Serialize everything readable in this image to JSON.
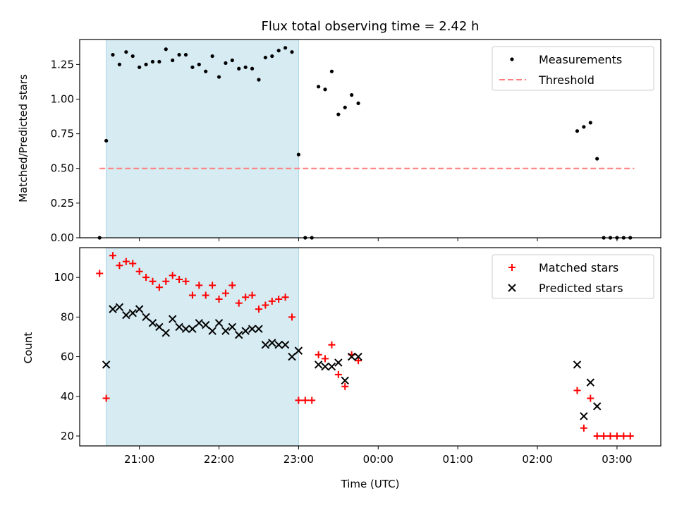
{
  "chart_data": [
    {
      "type": "scatter",
      "title": "Flux total observing time = 2.42 h",
      "ylabel": "Matched/Predicted stars",
      "xlabel": "",
      "x_axis": "time_utc",
      "xlim": [
        "20:15",
        "03:33"
      ],
      "ylim": [
        0,
        1.43
      ],
      "yticks": [
        "0.00",
        "0.25",
        "0.50",
        "0.75",
        "1.00",
        "1.25"
      ],
      "shaded_region": {
        "from": "20:35",
        "to": "23:00",
        "color": "#add8e6"
      },
      "legend_position": "top-right",
      "series": [
        {
          "name": "Measurements",
          "color": "#000000",
          "marker": "dot",
          "points": [
            [
              "20:30",
              0
            ],
            [
              "20:35",
              0.7
            ],
            [
              "20:40",
              1.32
            ],
            [
              "20:45",
              1.25
            ],
            [
              "20:50",
              1.34
            ],
            [
              "20:55",
              1.31
            ],
            [
              "21:00",
              1.23
            ],
            [
              "21:05",
              1.25
            ],
            [
              "21:10",
              1.27
            ],
            [
              "21:15",
              1.27
            ],
            [
              "21:20",
              1.36
            ],
            [
              "21:25",
              1.28
            ],
            [
              "21:30",
              1.32
            ],
            [
              "21:35",
              1.32
            ],
            [
              "21:40",
              1.23
            ],
            [
              "21:45",
              1.25
            ],
            [
              "21:50",
              1.2
            ],
            [
              "21:55",
              1.31
            ],
            [
              "22:00",
              1.16
            ],
            [
              "22:05",
              1.26
            ],
            [
              "22:10",
              1.28
            ],
            [
              "22:15",
              1.22
            ],
            [
              "22:20",
              1.23
            ],
            [
              "22:25",
              1.22
            ],
            [
              "22:30",
              1.14
            ],
            [
              "22:35",
              1.3
            ],
            [
              "22:40",
              1.31
            ],
            [
              "22:45",
              1.35
            ],
            [
              "22:50",
              1.37
            ],
            [
              "22:55",
              1.34
            ],
            [
              "23:00",
              0.6
            ],
            [
              "23:05",
              0
            ],
            [
              "23:10",
              0
            ],
            [
              "23:15",
              1.09
            ],
            [
              "23:20",
              1.07
            ],
            [
              "23:25",
              1.2
            ],
            [
              "23:30",
              0.89
            ],
            [
              "23:35",
              0.94
            ],
            [
              "23:40",
              1.03
            ],
            [
              "23:45",
              0.97
            ],
            [
              "02:30",
              0.77
            ],
            [
              "02:35",
              0.8
            ],
            [
              "02:40",
              0.83
            ],
            [
              "02:45",
              0.57
            ],
            [
              "02:50",
              0
            ],
            [
              "02:55",
              0
            ],
            [
              "03:00",
              0
            ],
            [
              "03:05",
              0
            ],
            [
              "03:10",
              0
            ]
          ]
        },
        {
          "name": "Threshold",
          "color": "#ff7f7f",
          "marker": "dashed-line",
          "points": [
            [
              "20:30",
              0.5
            ],
            [
              "03:13",
              0.5
            ]
          ]
        }
      ]
    },
    {
      "type": "scatter",
      "title": "",
      "ylabel": "Count",
      "xlabel": "Time (UTC)",
      "x_axis": "time_utc",
      "xlim": [
        "20:15",
        "03:33"
      ],
      "ylim": [
        15,
        115
      ],
      "yticks": [
        "20",
        "40",
        "60",
        "80",
        "100"
      ],
      "xticks": [
        "21:00",
        "22:00",
        "23:00",
        "00:00",
        "01:00",
        "02:00",
        "03:00"
      ],
      "shaded_region": {
        "from": "20:35",
        "to": "23:00",
        "color": "#add8e6"
      },
      "legend_position": "top-right",
      "series": [
        {
          "name": "Matched stars",
          "color": "#ff0000",
          "marker": "plus",
          "points": [
            [
              "20:30",
              102
            ],
            [
              "20:35",
              39
            ],
            [
              "20:40",
              111
            ],
            [
              "20:45",
              106
            ],
            [
              "20:50",
              108
            ],
            [
              "20:55",
              107
            ],
            [
              "21:00",
              103
            ],
            [
              "21:05",
              100
            ],
            [
              "21:10",
              98
            ],
            [
              "21:15",
              95
            ],
            [
              "21:20",
              98
            ],
            [
              "21:25",
              101
            ],
            [
              "21:30",
              99
            ],
            [
              "21:35",
              98
            ],
            [
              "21:40",
              91
            ],
            [
              "21:45",
              96
            ],
            [
              "21:50",
              91
            ],
            [
              "21:55",
              96
            ],
            [
              "22:00",
              89
            ],
            [
              "22:05",
              92
            ],
            [
              "22:10",
              96
            ],
            [
              "22:15",
              87
            ],
            [
              "22:20",
              90
            ],
            [
              "22:25",
              91
            ],
            [
              "22:30",
              84
            ],
            [
              "22:35",
              86
            ],
            [
              "22:40",
              88
            ],
            [
              "22:45",
              89
            ],
            [
              "22:50",
              90
            ],
            [
              "22:55",
              80
            ],
            [
              "23:00",
              38
            ],
            [
              "23:05",
              38
            ],
            [
              "23:10",
              38
            ],
            [
              "23:15",
              61
            ],
            [
              "23:20",
              59
            ],
            [
              "23:25",
              66
            ],
            [
              "23:30",
              51
            ],
            [
              "23:35",
              45
            ],
            [
              "23:40",
              61
            ],
            [
              "23:45",
              58
            ],
            [
              "02:30",
              43
            ],
            [
              "02:35",
              24
            ],
            [
              "02:40",
              39
            ],
            [
              "02:45",
              20
            ],
            [
              "02:50",
              20
            ],
            [
              "02:55",
              20
            ],
            [
              "03:00",
              20
            ],
            [
              "03:05",
              20
            ],
            [
              "03:10",
              20
            ]
          ]
        },
        {
          "name": "Predicted stars",
          "color": "#000000",
          "marker": "x",
          "points": [
            [
              "20:35",
              56
            ],
            [
              "20:40",
              84
            ],
            [
              "20:45",
              85
            ],
            [
              "20:50",
              81
            ],
            [
              "20:55",
              82
            ],
            [
              "21:00",
              84
            ],
            [
              "21:05",
              80
            ],
            [
              "21:10",
              77
            ],
            [
              "21:15",
              75
            ],
            [
              "21:20",
              72
            ],
            [
              "21:25",
              79
            ],
            [
              "21:30",
              75
            ],
            [
              "21:35",
              74
            ],
            [
              "21:40",
              74
            ],
            [
              "21:45",
              77
            ],
            [
              "21:50",
              76
            ],
            [
              "21:55",
              73
            ],
            [
              "22:00",
              77
            ],
            [
              "22:05",
              73
            ],
            [
              "22:10",
              75
            ],
            [
              "22:15",
              71
            ],
            [
              "22:20",
              73
            ],
            [
              "22:25",
              74
            ],
            [
              "22:30",
              74
            ],
            [
              "22:35",
              66
            ],
            [
              "22:40",
              67
            ],
            [
              "22:45",
              66
            ],
            [
              "22:50",
              66
            ],
            [
              "22:55",
              60
            ],
            [
              "23:00",
              63
            ],
            [
              "23:15",
              56
            ],
            [
              "23:20",
              55
            ],
            [
              "23:25",
              55
            ],
            [
              "23:30",
              57
            ],
            [
              "23:35",
              48
            ],
            [
              "23:40",
              60
            ],
            [
              "23:45",
              60
            ],
            [
              "02:30",
              56
            ],
            [
              "02:35",
              30
            ],
            [
              "02:40",
              47
            ],
            [
              "02:45",
              35
            ]
          ]
        }
      ]
    }
  ]
}
